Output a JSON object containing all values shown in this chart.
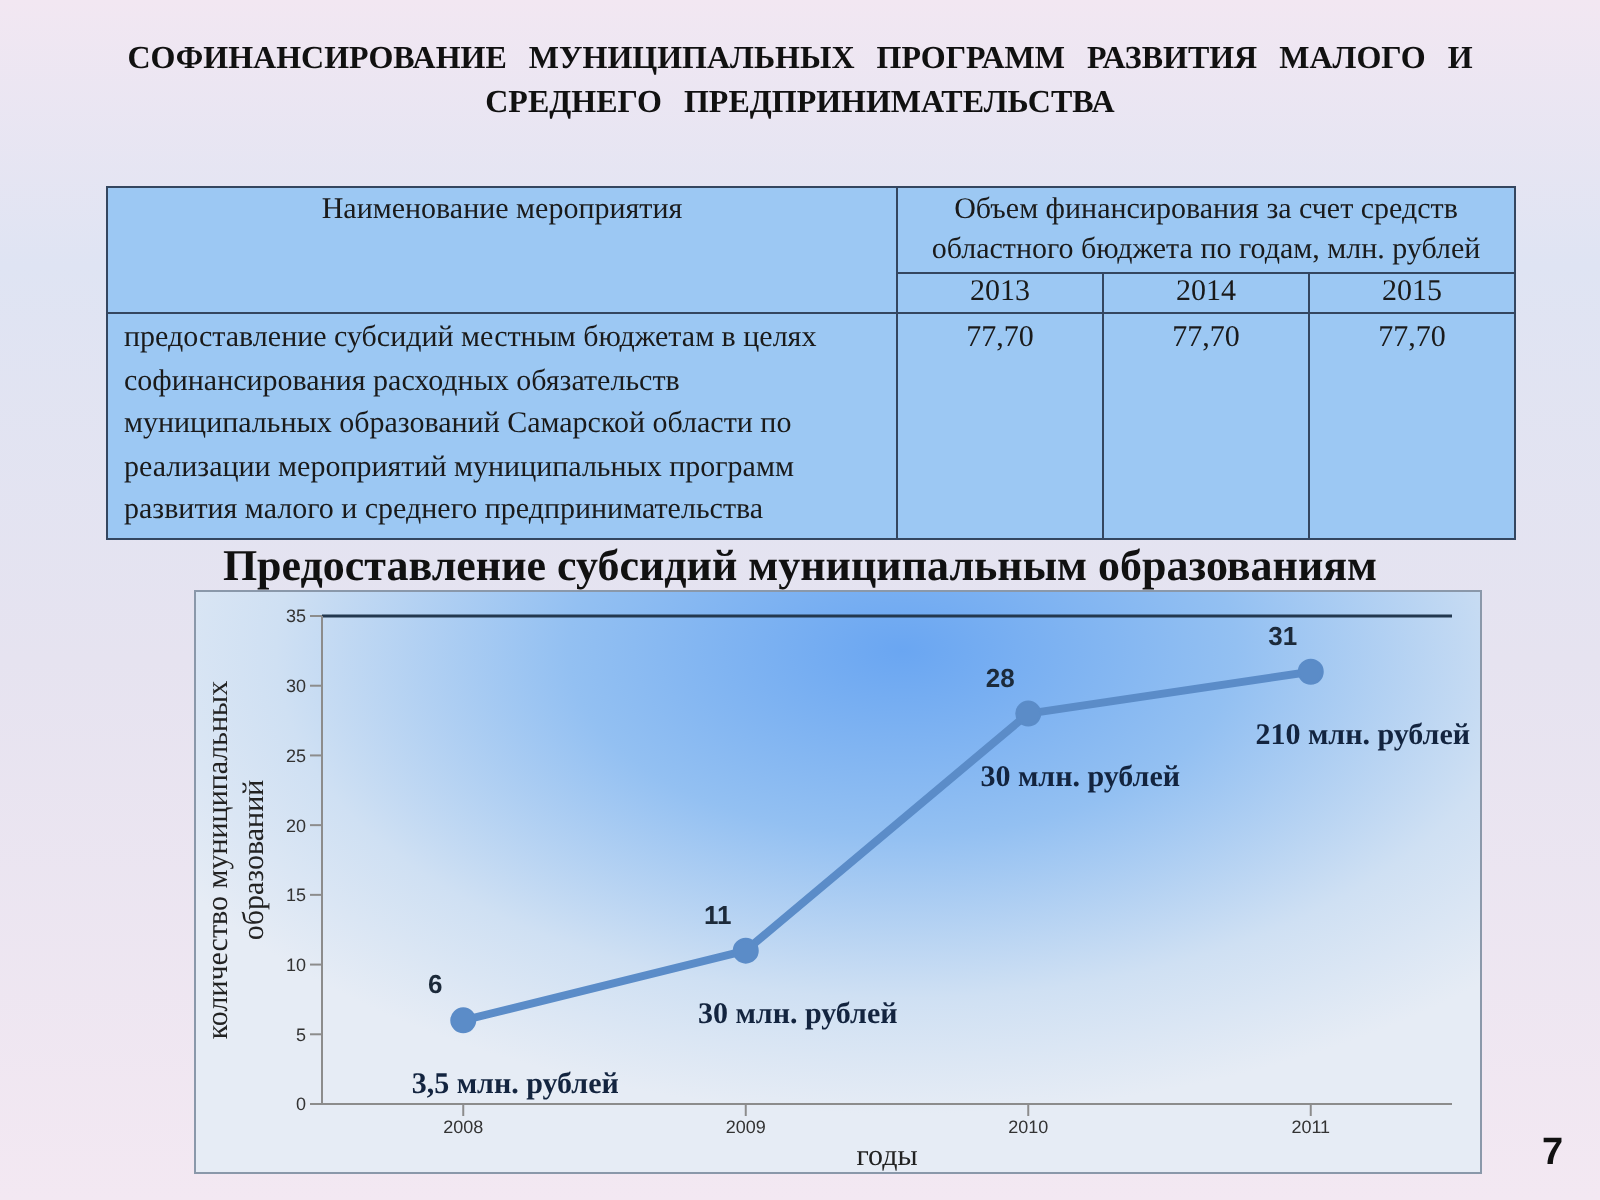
{
  "chart_data": [
    {
      "type": "other",
      "title": "СОФИНАНСИРОВАНИЕ МУНИЦИПАЛЬНЫХ ПРОГРАММ РАЗВИТИЯ МАЛОГО И СРЕДНЕГО ПРЕДПРИНИМАТЕЛЬСТВА",
      "categories": [
        "2013",
        "2014",
        "2015"
      ],
      "values": [
        77.7,
        77.7,
        77.7
      ],
      "value_labels": [
        "77,70",
        "77,70",
        "77,70"
      ],
      "annotations": [
        "Наименование мероприятия",
        "Объем финансирования за счет средств областного бюджета по годам, млн. рублей",
        "предоставление субсидий местным бюджетам в целях софинансирования расходных обязательств муниципальных образований Самарской области по реализации мероприятий муниципальных программ развития малого и среднего предпринимательства"
      ]
    },
    {
      "type": "line",
      "title": "Предоставление субсидий муниципальным образованиям",
      "xlabel": "годы",
      "ylabel": "количество муниципальных образований",
      "categories": [
        "2008",
        "2009",
        "2010",
        "2011"
      ],
      "values": [
        6,
        11,
        28,
        31
      ],
      "color": "#5b8cc8",
      "marker": "circle",
      "data_labels": true,
      "ylim": [
        0,
        35
      ],
      "yticks": [
        0,
        5,
        10,
        15,
        20,
        25,
        30,
        35
      ],
      "annotations": [
        {
          "text": "3,5 млн. рублей",
          "x": "2008",
          "y": 6
        },
        {
          "text": "30 млн. рублей",
          "x": "2009",
          "y": 11
        },
        {
          "text": "30 млн. рублей",
          "x": "2010",
          "y": 28
        },
        {
          "text": "210 млн. рублей",
          "x": "2011",
          "y": 31
        },
        "7"
      ]
    }
  ]
}
